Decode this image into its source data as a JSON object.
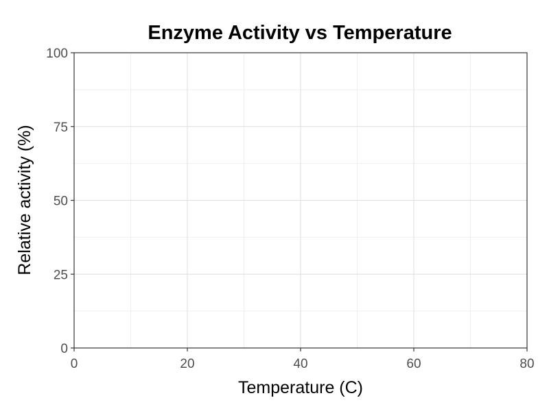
{
  "chart_data": {
    "type": "line",
    "title": "Enzyme Activity vs Temperature",
    "xlabel": "Temperature (C)",
    "ylabel": "Relative activity (%)",
    "xlim": [
      0,
      80
    ],
    "ylim": [
      0,
      100
    ],
    "x_ticks": [
      0,
      20,
      40,
      60,
      80
    ],
    "y_ticks": [
      0,
      25,
      50,
      75,
      100
    ],
    "x_minor_ticks": [
      10,
      30,
      50,
      70
    ],
    "y_minor_ticks": [
      12.5,
      37.5,
      62.5,
      87.5
    ],
    "grid": true,
    "legend": "none",
    "series": [],
    "colors": {
      "grid_major": "#dedede",
      "grid_minor": "#efefef",
      "axis": "#333333",
      "tick_label": "#4d4d4d"
    }
  }
}
